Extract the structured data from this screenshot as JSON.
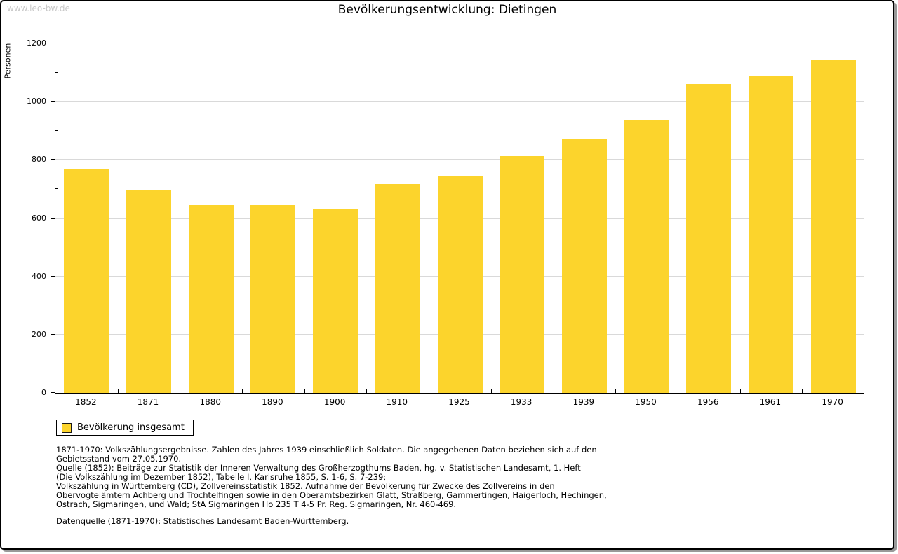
{
  "watermark": "www.leo-bw.de",
  "chart_data": {
    "type": "bar",
    "title": "Bevölkerungsentwicklung: Dietingen",
    "xlabel": "",
    "ylabel": "Personen",
    "categories": [
      "1852",
      "1871",
      "1880",
      "1890",
      "1900",
      "1910",
      "1925",
      "1933",
      "1939",
      "1950",
      "1956",
      "1961",
      "1970"
    ],
    "values": [
      770,
      697,
      646,
      646,
      631,
      716,
      743,
      812,
      872,
      936,
      1060,
      1086,
      1143
    ],
    "ylim": [
      0,
      1200
    ],
    "yticks": [
      0,
      200,
      400,
      600,
      800,
      1000,
      1200
    ],
    "yticks_minor": [
      100,
      300,
      500,
      700,
      900,
      1100
    ],
    "grid": "horizontal-major",
    "bar_color": "#FCD42C",
    "grid_color": "#D9D9D9",
    "legend": {
      "position": "below-left",
      "label": "Bevölkerung insgesamt"
    }
  },
  "footnotes": [
    "1871-1970: Volkszählungsergebnisse. Zahlen des Jahres 1939 einschließlich Soldaten. Die angegebenen Daten beziehen sich auf den",
    "Gebietsstand vom 27.05.1970.",
    "Quelle (1852): Beiträge zur Statistik der Inneren Verwaltung des Großherzogthums Baden, hg. v. Statistischen Landesamt, 1. Heft",
    "(Die Volkszählung im Dezember 1852), Tabelle I, Karlsruhe 1855, S. 1-6, S. 7-239;",
    "Volkszählung in Württemberg (CD), Zollvereinsstatistik 1852. Aufnahme der Bevölkerung für Zwecke des Zollvereins in den",
    "Obervogteiämtern Achberg und Trochtelfingen sowie in den Oberamtsbezirken Glatt, Straßberg, Gammertingen, Haigerloch, Hechingen,",
    "Ostrach, Sigmaringen, und Wald; StA Sigmaringen Ho 235 T 4-5 Pr. Reg. Sigmaringen, Nr. 460-469."
  ],
  "datasource": "Datenquelle (1871-1970): Statistisches Landesamt Baden-Württemberg."
}
